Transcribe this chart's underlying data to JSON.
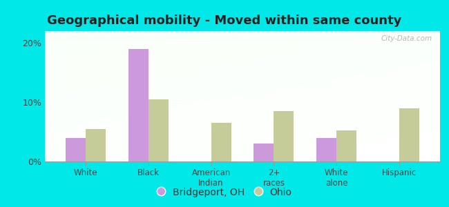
{
  "title": "Geographical mobility - Moved within same county",
  "categories": [
    "White",
    "Black",
    "American\nIndian",
    "2+\nraces",
    "White\nalone",
    "Hispanic"
  ],
  "bridgeport_values": [
    4.0,
    19.0,
    0.0,
    3.0,
    4.0,
    0.0
  ],
  "ohio_values": [
    5.5,
    10.5,
    6.5,
    8.5,
    5.2,
    9.0
  ],
  "bridgeport_color": "#cc99dd",
  "ohio_color": "#c5cc99",
  "ylim": [
    0,
    22
  ],
  "yticks": [
    0,
    10,
    20
  ],
  "ytick_labels": [
    "0%",
    "10%",
    "20%"
  ],
  "bar_width": 0.32,
  "background_outer": "#00e8e8",
  "legend_labels": [
    "Bridgeport, OH",
    "Ohio"
  ],
  "watermark": "City-Data.com",
  "title_fontsize": 13,
  "label_fontsize": 8.5,
  "tick_fontsize": 9
}
